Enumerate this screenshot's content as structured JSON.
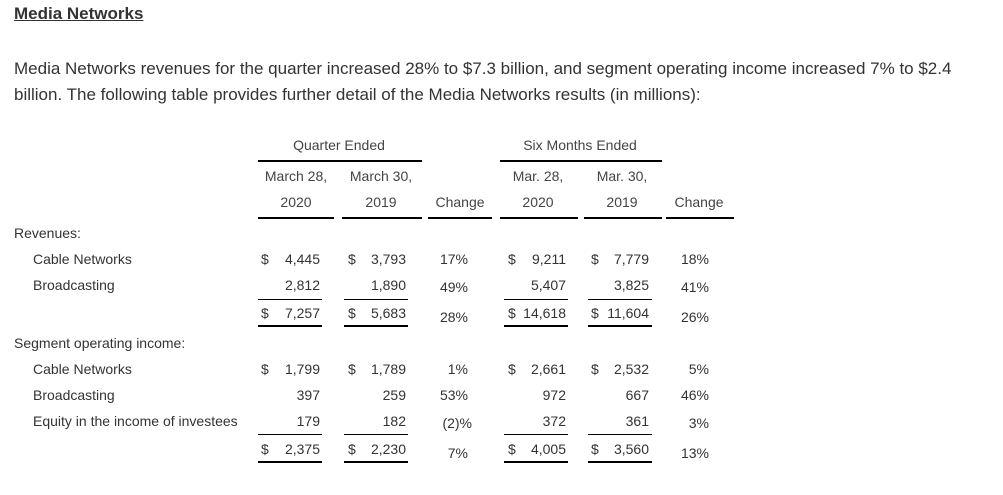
{
  "section": {
    "title": "Media Networks",
    "intro": "Media Networks revenues for the quarter increased 28% to $7.3 billion, and segment operating income increased 7% to $2.4 billion. The following table provides further detail of the Media Networks results (in millions):"
  },
  "table": {
    "group_headers": {
      "quarter": "Quarter Ended",
      "six_months": "Six Months Ended"
    },
    "col_headers": {
      "q2020_line1": "March 28,",
      "q2020_line2": "2020",
      "q2019_line1": "March 30,",
      "q2019_line2": "2019",
      "q_change": "Change",
      "s2020_line1": "Mar. 28,",
      "s2020_line2": "2020",
      "s2019_line1": "Mar. 30,",
      "s2019_line2": "2019",
      "s_change": "Change"
    },
    "sections": {
      "revenues": "Revenues:",
      "operating_income": "Segment operating income:"
    },
    "currency": "$",
    "rows": [
      {
        "label": "Cable Networks",
        "q2020": "4,445",
        "q2019": "3,793",
        "q_change": "17%",
        "s2020": "9,211",
        "s2019": "7,779",
        "s_change": "18%"
      },
      {
        "label": "Broadcasting",
        "q2020": "2,812",
        "q2019": "1,890",
        "q_change": "49%",
        "s2020": "5,407",
        "s2019": "3,825",
        "s_change": "41%"
      },
      {
        "label": "",
        "q2020": "7,257",
        "q2019": "5,683",
        "q_change": "28%",
        "s2020": "14,618",
        "s2019": "11,604",
        "s_change": "26%"
      },
      {
        "label": "Cable Networks",
        "q2020": "1,799",
        "q2019": "1,789",
        "q_change": "1%",
        "s2020": "2,661",
        "s2019": "2,532",
        "s_change": "5%"
      },
      {
        "label": "Broadcasting",
        "q2020": "397",
        "q2019": "259",
        "q_change": "53%",
        "s2020": "972",
        "s2019": "667",
        "s_change": "46%"
      },
      {
        "label": "Equity in the income of investees",
        "q2020": "179",
        "q2019": "182",
        "q_change": "(2)%",
        "s2020": "372",
        "s2019": "361",
        "s_change": "3%"
      },
      {
        "label": "",
        "q2020": "2,375",
        "q2019": "2,230",
        "q_change": "7%",
        "s2020": "4,005",
        "s2019": "3,560",
        "s_change": "13%"
      }
    ]
  }
}
